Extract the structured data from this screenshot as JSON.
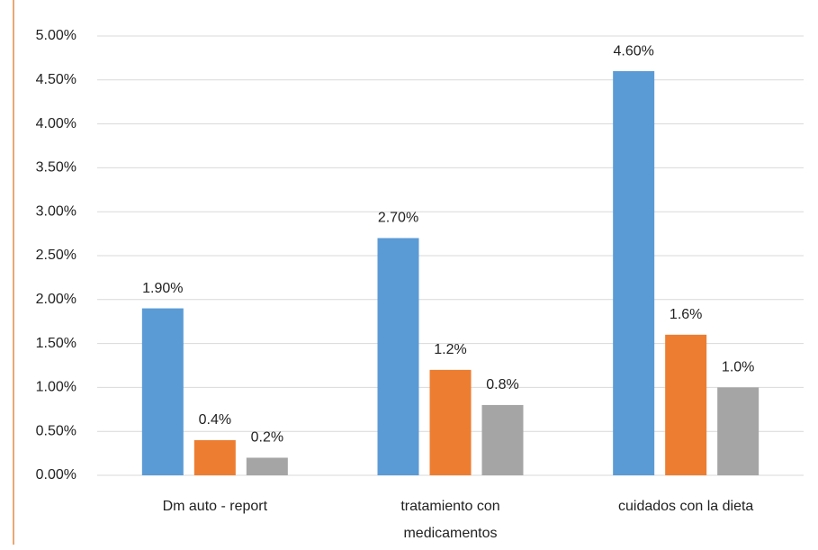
{
  "chart_data": {
    "type": "bar",
    "categories": [
      "Dm auto - report",
      "tratamiento con medicamentos",
      "cuidados  con la dieta"
    ],
    "series": [
      {
        "color": "#5b9bd5",
        "values": [
          1.9,
          2.7,
          4.6
        ],
        "value_labels": [
          "1.90%",
          "2.70%",
          "4.60%"
        ]
      },
      {
        "color": "#ed7d31",
        "values": [
          0.4,
          1.2,
          1.6
        ],
        "value_labels": [
          "0.4%",
          "1.2%",
          "1.6%"
        ]
      },
      {
        "color": "#a5a5a5",
        "values": [
          0.2,
          0.8,
          1.0
        ],
        "value_labels": [
          "0.2%",
          "0.8%",
          "1.0%"
        ]
      }
    ],
    "ylim": [
      0,
      5
    ],
    "yticks": [
      {
        "value": 0,
        "label": "0.00%"
      },
      {
        "value": 0.5,
        "label": "0.50%"
      },
      {
        "value": 1,
        "label": "1.00%"
      },
      {
        "value": 1.5,
        "label": "1.50%"
      },
      {
        "value": 2,
        "label": "2.00%"
      },
      {
        "value": 2.5,
        "label": "2.50%"
      },
      {
        "value": 3,
        "label": "3.00%"
      },
      {
        "value": 3.5,
        "label": "3.50%"
      },
      {
        "value": 4,
        "label": "4.00%"
      },
      {
        "value": 4.5,
        "label": "4.50%"
      },
      {
        "value": 5,
        "label": "5.00%"
      }
    ],
    "grid": true
  }
}
